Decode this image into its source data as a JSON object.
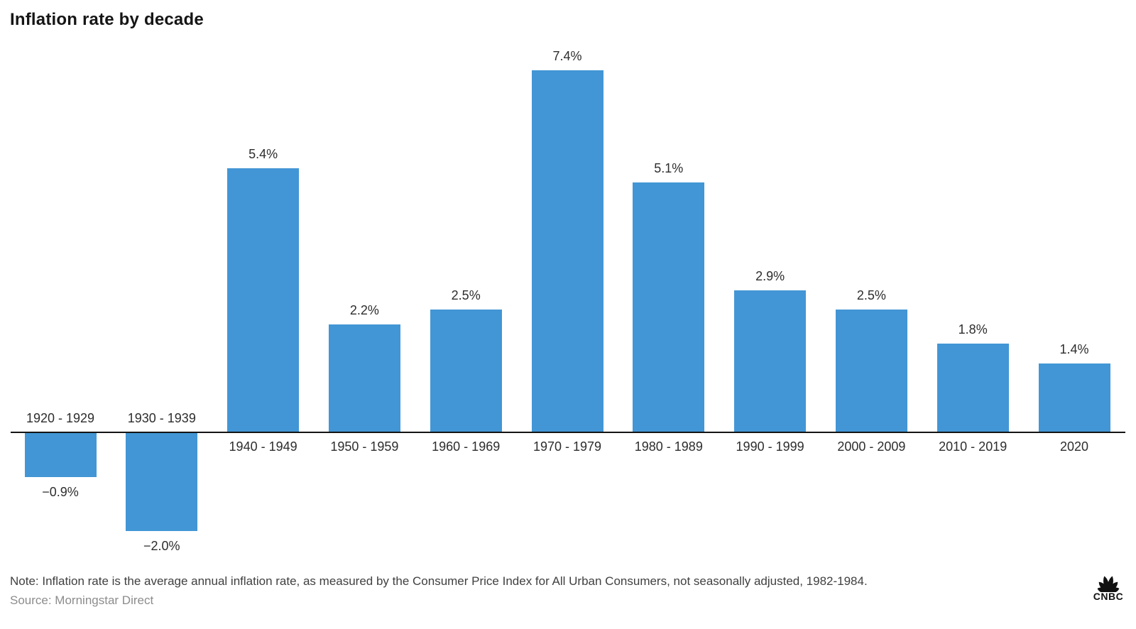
{
  "title": "Inflation rate by decade",
  "note": "Note: Inflation rate is the average annual inflation rate, as measured by the Consumer Price Index for All Urban Consumers, not seasonally adjusted, 1982-1984.",
  "source": "Source: Morningstar Direct",
  "branding": {
    "logo_text": "CNBC",
    "icon": "cnbc-peacock-icon"
  },
  "colors": {
    "bar": "#4296d5",
    "axis": "#141414",
    "title_text": "#151515",
    "label_text": "#2d2d2d",
    "note_text": "#404040",
    "source_text": "#8c8c8c",
    "logo": "#111111"
  },
  "chart_data": {
    "type": "bar",
    "title": "Inflation rate by decade",
    "categories": [
      "1920 - 1929",
      "1930 - 1939",
      "1940 - 1949",
      "1950 - 1959",
      "1960 - 1969",
      "1970 - 1979",
      "1980 - 1989",
      "1990 - 1999",
      "2000 - 2009",
      "2010 - 2019",
      "2020"
    ],
    "values": [
      -0.9,
      -2.0,
      5.4,
      2.2,
      2.5,
      7.4,
      5.1,
      2.9,
      2.5,
      1.8,
      1.4
    ],
    "value_labels": [
      "−0.9%",
      "−2.0%",
      "5.4%",
      "2.2%",
      "2.5%",
      "7.4%",
      "5.1%",
      "2.9%",
      "2.5%",
      "1.8%",
      "1.4%"
    ],
    "xlabel": "",
    "ylabel": "",
    "ylim": [
      -2.5,
      8
    ],
    "grid": false,
    "legend": "none",
    "bar_color": "#4296d5",
    "data_labels_shown": true
  }
}
